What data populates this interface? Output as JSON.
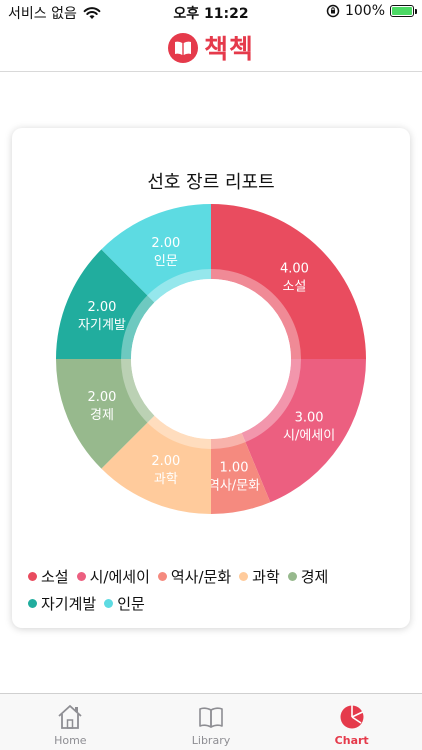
{
  "status_bar": {
    "carrier": "서비스 없음",
    "time": "오후 11:22",
    "battery": "100%"
  },
  "header": {
    "title": "책첵"
  },
  "card": {
    "title": "선호 장르 리포트"
  },
  "chart_data": {
    "type": "pie",
    "title": "선호 장르 리포트",
    "categories": [
      "소설",
      "시/에세이",
      "역사/문화",
      "과학",
      "경제",
      "자기계발",
      "인문"
    ],
    "values": [
      4.0,
      3.0,
      1.0,
      2.0,
      2.0,
      2.0,
      2.0
    ],
    "value_labels": [
      "4.00",
      "3.00",
      "1.00",
      "2.00",
      "2.00",
      "2.00",
      "2.00"
    ],
    "colors": [
      "#e94c5f",
      "#ec5f80",
      "#f58a7f",
      "#ffcb9c",
      "#97b98d",
      "#21ad9e",
      "#5ddbe2"
    ],
    "legend_position": "bottom",
    "donut": true
  },
  "tabs": [
    {
      "label": "Home",
      "icon": "home-icon",
      "active": false
    },
    {
      "label": "Library",
      "icon": "book-icon",
      "active": false
    },
    {
      "label": "Chart",
      "icon": "pie-chart-icon",
      "active": true
    }
  ],
  "colors": {
    "accent": "#e53a4b"
  }
}
